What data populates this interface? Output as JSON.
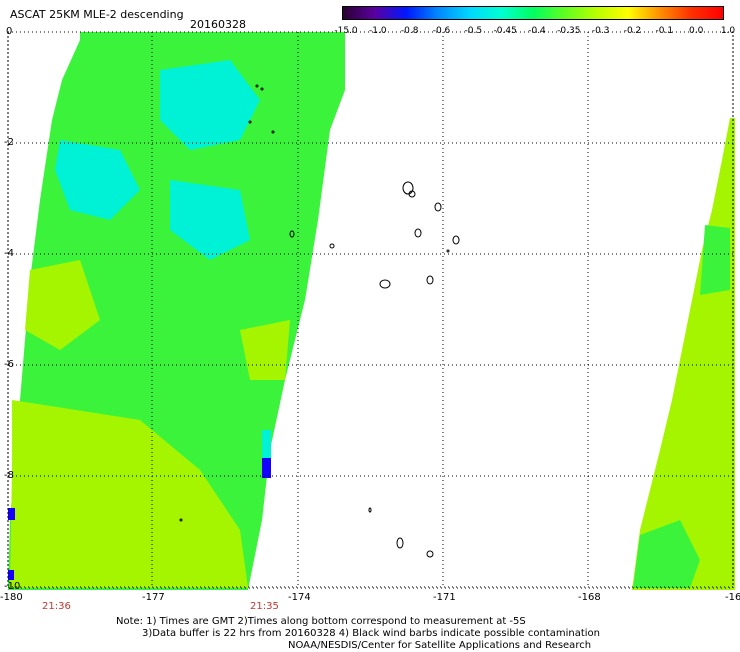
{
  "header": {
    "title": "ASCAT 25KM MLE-2 descending",
    "date": "20160328"
  },
  "colorbar": {
    "labels": [
      "-15.0",
      "-1.0",
      "-0.8",
      "-0.6",
      "-0.5",
      "-0.45",
      "-0.4",
      "-0.35",
      "-0.3",
      "-0.2",
      "-0.1",
      "0.0",
      "1.0"
    ],
    "colors": [
      "#2a0030",
      "#5a00a0",
      "#0018ff",
      "#0088ff",
      "#00d8ff",
      "#00ffd0",
      "#00ff60",
      "#60ff20",
      "#b8ff00",
      "#ffff00",
      "#ff9000",
      "#ff3000",
      "#ff0000"
    ]
  },
  "axes": {
    "x_ticks": [
      "-180",
      "-177",
      "-174",
      "-171",
      "-168",
      "-16"
    ],
    "y_ticks": [
      "0",
      "-2",
      "-4",
      "-6",
      "-8",
      "-10"
    ]
  },
  "times": [
    "21:36",
    "21:35"
  ],
  "notes": [
    "Note: 1) Times are GMT 2)Times along bottom correspond to measurement at -5S",
    "3)Data buffer is 22 hrs from 20160328 4) Black wind barbs indicate possible contamination",
    "NOAA/NESDIS/Center for Satellite Applications and Research"
  ],
  "colors": {
    "swath_main": "#3cf33c",
    "swath_yellowgreen": "#a6f500",
    "swath_cyan": "#00f2d6",
    "swath_blue": "#1400ff"
  }
}
